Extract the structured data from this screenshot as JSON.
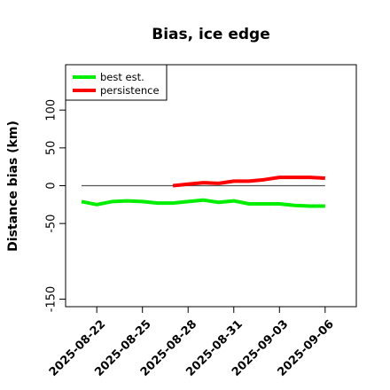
{
  "chart_data": {
    "type": "line",
    "title": "Bias, ice edge",
    "xlabel": "",
    "ylabel": "Distance bias (km)",
    "x_ticks": [
      "2025-08-22",
      "2025-08-25",
      "2025-08-28",
      "2025-08-31",
      "2025-09-03",
      "2025-09-06"
    ],
    "y_ticks": [
      -150,
      -50,
      0,
      50,
      100
    ],
    "ylim": [
      -160,
      160
    ],
    "xlim": [
      "2025-08-21",
      "2025-09-07"
    ],
    "grid": false,
    "legend_placement": "top-left",
    "reference_line": {
      "y": 0,
      "x_start": "2025-08-21",
      "x_end": "2025-09-06",
      "color": "#555555"
    },
    "series": [
      {
        "name": "best est.",
        "color": "#00ee00",
        "x": [
          "2025-08-21",
          "2025-08-22",
          "2025-08-23",
          "2025-08-24",
          "2025-08-25",
          "2025-08-26",
          "2025-08-27",
          "2025-08-28",
          "2025-08-29",
          "2025-08-30",
          "2025-08-31",
          "2025-09-01",
          "2025-09-02",
          "2025-09-03",
          "2025-09-04",
          "2025-09-05",
          "2025-09-06"
        ],
        "y": [
          -21,
          -25,
          -21,
          -20,
          -21,
          -23,
          -23,
          -21,
          -19,
          -22,
          -20,
          -24,
          -24,
          -24,
          -26,
          -27,
          -27
        ]
      },
      {
        "name": "persistence",
        "color": "#ff0000",
        "x": [
          "2025-08-27",
          "2025-08-28",
          "2025-08-29",
          "2025-08-30",
          "2025-08-31",
          "2025-09-01",
          "2025-09-02",
          "2025-09-03",
          "2025-09-04",
          "2025-09-05",
          "2025-09-06"
        ],
        "y": [
          0,
          2,
          4,
          3,
          6,
          6,
          8,
          11,
          11,
          11,
          10
        ]
      }
    ]
  }
}
